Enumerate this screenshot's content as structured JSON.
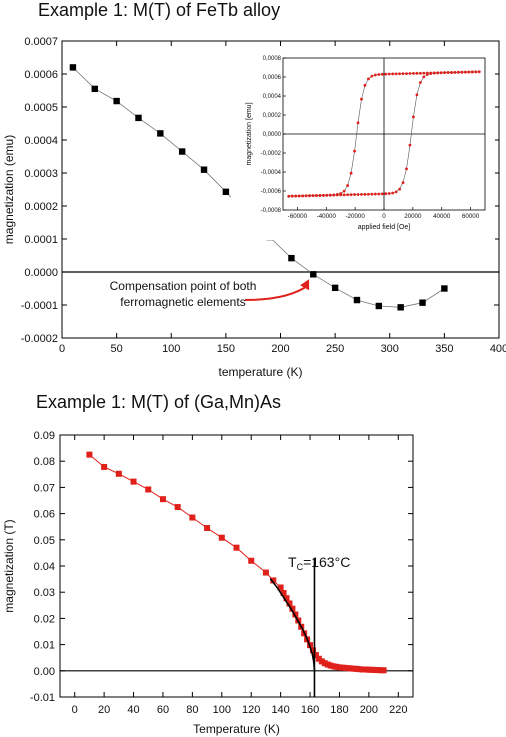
{
  "chart_data": [
    {
      "type": "scatter",
      "title": "Example 1: M(T) of FeTb alloy",
      "xlabel": "temperature (K)",
      "ylabel": "magnetization (emu)",
      "xlim": [
        0,
        400
      ],
      "ylim": [
        -0.0002,
        0.0007
      ],
      "xticks": [
        0,
        50,
        100,
        150,
        200,
        250,
        300,
        350,
        400
      ],
      "yticks": [
        -0.0002,
        -0.0001,
        0.0,
        0.0001,
        0.0002,
        0.0003,
        0.0004,
        0.0005,
        0.0006,
        0.0007
      ],
      "ytick_labels": [
        "-0.0002",
        "-0.0001",
        "0.0000",
        "0.0001",
        "0.0002",
        "0.0003",
        "0.0004",
        "0.0005",
        "0.0006",
        "0.0007"
      ],
      "series": [
        {
          "color": "#000000",
          "marker": "square",
          "x": [
            10,
            30,
            50,
            70,
            90,
            110,
            130,
            150,
            170,
            190,
            210,
            230,
            250,
            270,
            290,
            310,
            330,
            350
          ],
          "y": [
            0.00062,
            0.000555,
            0.000518,
            0.000467,
            0.00042,
            0.000365,
            0.00031,
            0.000243,
            0.000173,
            0.000106,
            4.2e-05,
            -7e-06,
            -4.8e-05,
            -8.5e-05,
            -0.000103,
            -0.000107,
            -9.3e-05,
            -5e-05
          ]
        }
      ],
      "annotation": {
        "lines": [
          "Compensation point of both",
          "ferromagnetic elements"
        ],
        "arrow_to": [
          228,
          -7e-06
        ],
        "arrow_color": "#e0201a"
      },
      "inset": {
        "type": "line",
        "xlabel": "applied field [Oe]",
        "ylabel": "magnetization [emu]",
        "xlim": [
          -70000,
          70000
        ],
        "ylim": [
          -0.0008,
          0.0008
        ],
        "xticks": [
          -60000,
          -40000,
          -20000,
          0,
          20000,
          40000,
          60000
        ],
        "xtick_labels": [
          "-60000",
          "-40000",
          "-20000",
          "0",
          "20000",
          "40000",
          "60000"
        ],
        "yticks": [
          -0.0008,
          -0.0006,
          -0.0004,
          -0.0002,
          0.0,
          0.0002,
          0.0004,
          0.0006,
          0.0008
        ],
        "ytick_labels": [
          "-0,0008",
          "-0,0006",
          "-0,0004",
          "-0,0002",
          "0,0000",
          "0,0002",
          "0,0004",
          "0,0006",
          "0,0008"
        ],
        "color": "#e0201a",
        "loop": {
          "saturation": 0.00063,
          "coercive_field": 19000,
          "remanence": 0.00048
        }
      }
    },
    {
      "type": "scatter",
      "title": "Example 1: M(T) of (Ga,Mn)As",
      "xlabel": "Temperature (K)",
      "ylabel": "magnetization (T)",
      "xlim": [
        -10,
        230
      ],
      "ylim": [
        -0.01,
        0.09
      ],
      "xticks": [
        0,
        20,
        40,
        60,
        80,
        100,
        120,
        140,
        160,
        180,
        200,
        220
      ],
      "yticks": [
        -0.01,
        0.0,
        0.01,
        0.02,
        0.03,
        0.04,
        0.05,
        0.06,
        0.07,
        0.08,
        0.09
      ],
      "ytick_labels": [
        "-0.01",
        "0.00",
        "0.01",
        "0.02",
        "0.03",
        "0.04",
        "0.05",
        "0.06",
        "0.07",
        "0.08",
        "0.09"
      ],
      "series": [
        {
          "color": "#e0201a",
          "marker": "square",
          "x": [
            10,
            20,
            30,
            40,
            50,
            60,
            70,
            80,
            90,
            100,
            110,
            120,
            130,
            135,
            140,
            142,
            144,
            146,
            148,
            150,
            152,
            154,
            156,
            158,
            160,
            162,
            164,
            166,
            168,
            170,
            172,
            174,
            176,
            178,
            180,
            182,
            184,
            186,
            188,
            190,
            192,
            194,
            196,
            198,
            200,
            202,
            204,
            206,
            208,
            210
          ],
          "y": [
            0.0825,
            0.0778,
            0.0752,
            0.0722,
            0.0692,
            0.0655,
            0.0625,
            0.0585,
            0.0545,
            0.0508,
            0.047,
            0.042,
            0.0375,
            0.0345,
            0.0318,
            0.0297,
            0.0277,
            0.0257,
            0.0237,
            0.0215,
            0.0192,
            0.0168,
            0.0143,
            0.012,
            0.0098,
            0.0078,
            0.006,
            0.0046,
            0.0036,
            0.0029,
            0.0024,
            0.002,
            0.0017,
            0.0015,
            0.0013,
            0.0012,
            0.0011,
            0.001,
            0.0009,
            0.0008,
            0.0007,
            0.0006,
            0.0005,
            0.0005,
            0.0004,
            0.0004,
            0.0003,
            0.0003,
            0.0002,
            0.0002
          ]
        }
      ],
      "fit": {
        "x": [
          133,
          138,
          143,
          148,
          152,
          155,
          158,
          160,
          161.5,
          162.5,
          163
        ],
        "y": [
          0.0352,
          0.0315,
          0.0272,
          0.0228,
          0.0188,
          0.0158,
          0.0122,
          0.0092,
          0.0066,
          0.0035,
          0.0
        ]
      },
      "vline_x": 163,
      "annotation": {
        "text": "T",
        "sub": "C",
        "rest": "=163°C"
      }
    }
  ]
}
